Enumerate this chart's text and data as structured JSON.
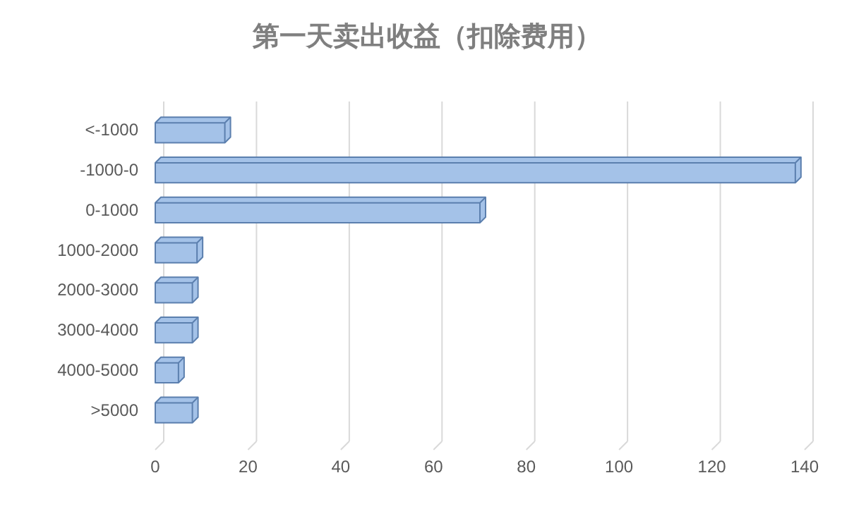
{
  "chart_data": {
    "type": "bar",
    "orientation": "horizontal",
    "title": "第一天卖出收益（扣除费用）",
    "categories": [
      "<-1000",
      "-1000-0",
      "0-1000",
      "1000-2000",
      "2000-3000",
      "3000-4000",
      "4000-5000",
      ">5000"
    ],
    "values": [
      15,
      138,
      70,
      9,
      8,
      8,
      5,
      8
    ],
    "color": "#a4c2e8",
    "xlim": [
      0,
      140
    ],
    "xticks": [
      0,
      20,
      40,
      60,
      80,
      100,
      120,
      140
    ],
    "grid": "x"
  }
}
